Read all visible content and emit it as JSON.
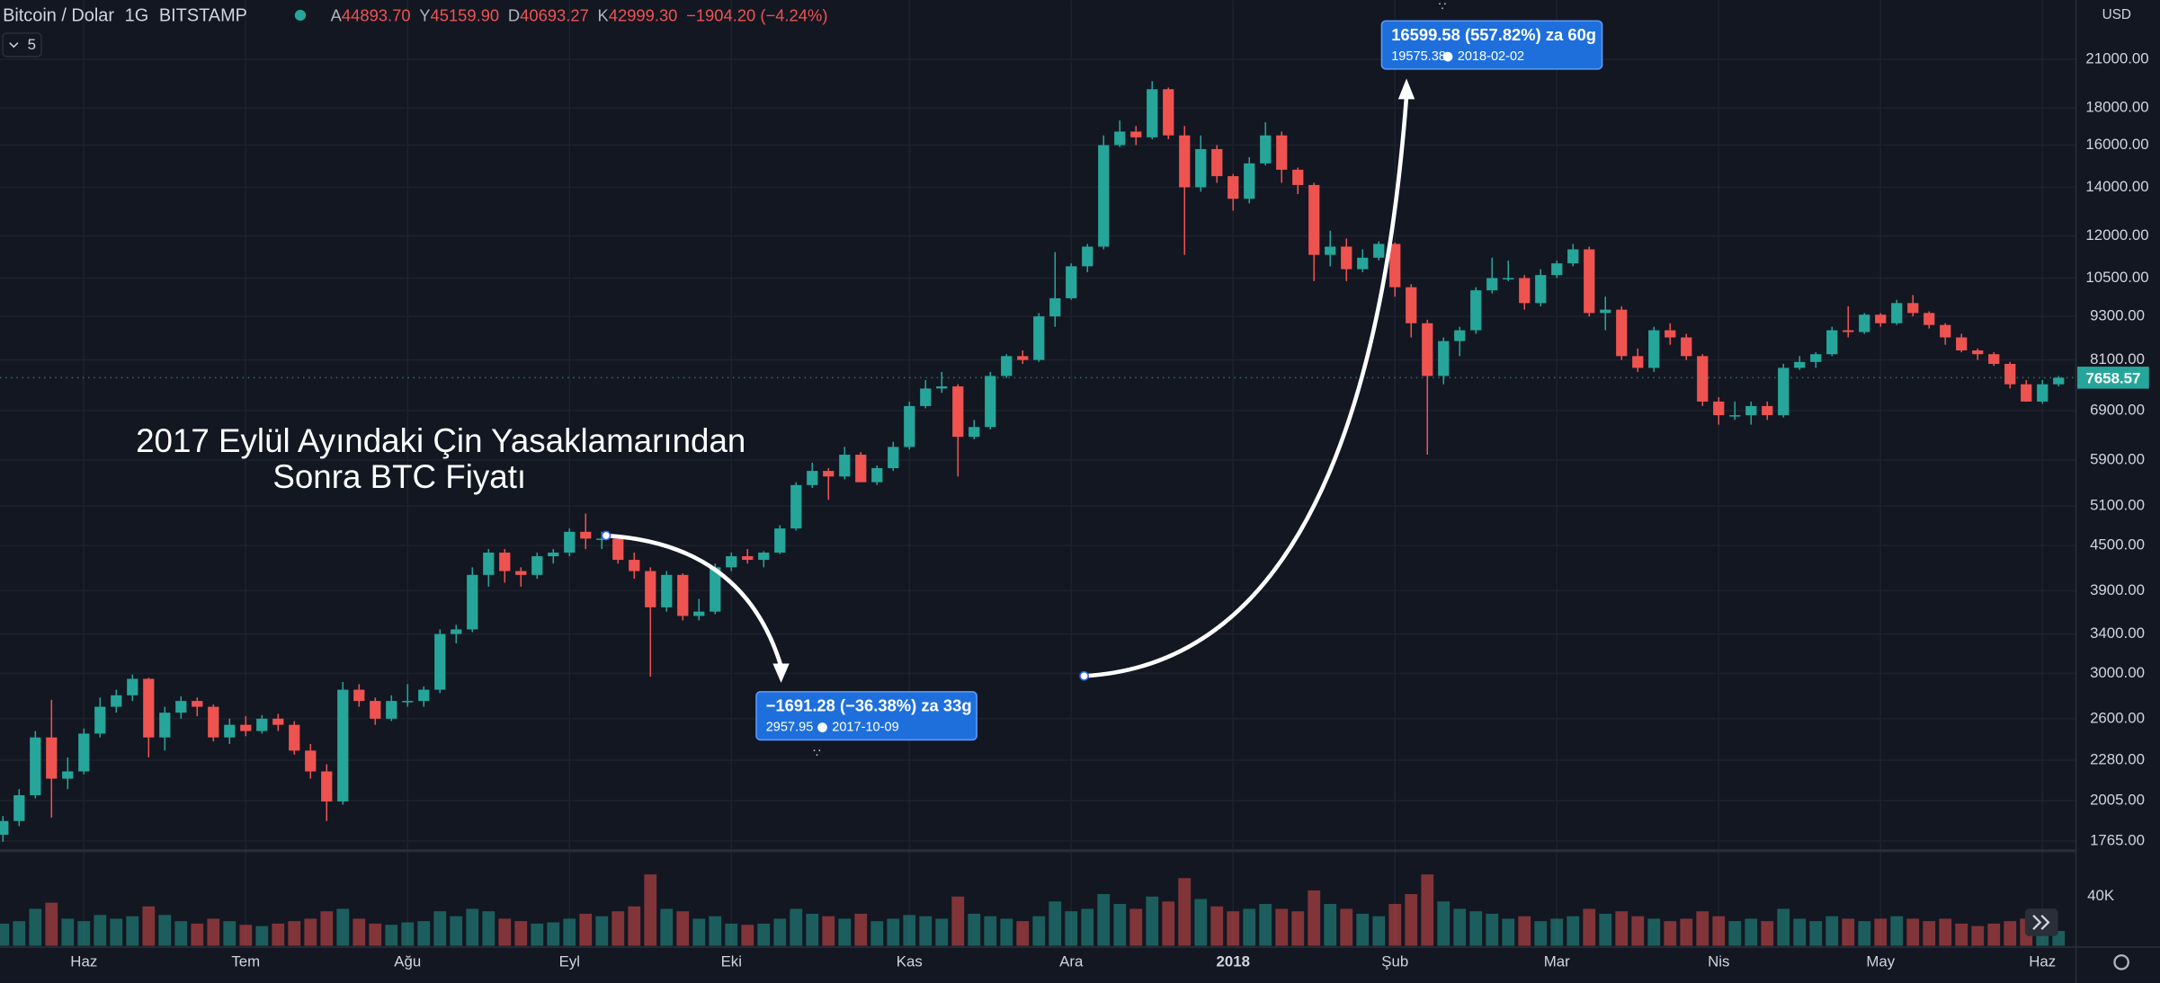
{
  "header": {
    "symbol": "Bitcoin / Dolar",
    "interval": "1G",
    "exchange": "BITSTAMP",
    "ohlc": [
      {
        "label": "A",
        "value": "44893.70"
      },
      {
        "label": "Y",
        "value": "45159.90"
      },
      {
        "label": "D",
        "value": "40693.27"
      },
      {
        "label": "K",
        "value": "42999.30"
      }
    ],
    "change": "−1904.20 (−4.24%)",
    "indicators": "5",
    "currency": "USD"
  },
  "chart_data": {
    "type": "candlestick",
    "log": true,
    "grid": true,
    "up_color": "#26a69a",
    "down_color": "#ef5350",
    "annotation": [
      "2017 Eylül Ayındaki Çin Yasaklamarından",
      "Sonra BTC Fiyatı"
    ],
    "measures": [
      {
        "text": "−1691.28 (−36.38%) za 33g",
        "price": 2957.95,
        "date": "2017-10-09"
      },
      {
        "text": "16599.58 (557.82%) za 60g",
        "price": 19575.38,
        "date": "2018-02-02"
      }
    ],
    "ylim": [
      1711,
      25330
    ],
    "yticks": [
      {
        "value": 1765,
        "label": "1765.00"
      },
      {
        "value": 2005,
        "label": "2005.00"
      },
      {
        "value": 2280,
        "label": "2280.00"
      },
      {
        "value": 2600,
        "label": "2600.00"
      },
      {
        "value": 3000,
        "label": "3000.00"
      },
      {
        "value": 3400,
        "label": "3400.00"
      },
      {
        "value": 3900,
        "label": "3900.00"
      },
      {
        "value": 4500,
        "label": "4500.00"
      },
      {
        "value": 5100,
        "label": "5100.00"
      },
      {
        "value": 5900,
        "label": "5900.00"
      },
      {
        "value": 6900,
        "label": "6900.00"
      },
      {
        "value": 8100,
        "label": "8100.00"
      },
      {
        "value": 9300,
        "label": "9300.00"
      },
      {
        "value": 10500,
        "label": "10500.00"
      },
      {
        "value": 12000,
        "label": "12000.00"
      },
      {
        "value": 14000,
        "label": "14000.00"
      },
      {
        "value": 16000,
        "label": "16000.00"
      },
      {
        "value": 18000,
        "label": "18000.00"
      },
      {
        "value": 21000,
        "label": "21000.00"
      }
    ],
    "vlim": [
      0,
      75000
    ],
    "vticks": [
      {
        "value": 40000,
        "label": "40K"
      }
    ],
    "categories": [
      null,
      null,
      null,
      null,
      null,
      "Haz",
      null,
      null,
      null,
      null,
      null,
      null,
      null,
      null,
      null,
      "Tem",
      null,
      null,
      null,
      null,
      null,
      null,
      null,
      null,
      null,
      "Ağu",
      null,
      null,
      null,
      null,
      null,
      null,
      null,
      null,
      null,
      "Eyl",
      null,
      null,
      null,
      null,
      null,
      null,
      null,
      null,
      null,
      "Eki",
      null,
      null,
      null,
      null,
      null,
      null,
      null,
      null,
      null,
      null,
      "Kas",
      null,
      null,
      null,
      null,
      null,
      null,
      null,
      null,
      null,
      "Ara",
      null,
      null,
      null,
      null,
      null,
      null,
      null,
      null,
      null,
      "2018",
      null,
      null,
      null,
      null,
      null,
      null,
      null,
      null,
      null,
      "Şub",
      null,
      null,
      null,
      null,
      null,
      null,
      null,
      null,
      null,
      "Mar",
      null,
      null,
      null,
      null,
      null,
      null,
      null,
      null,
      null,
      "Nis",
      null,
      null,
      null,
      null,
      null,
      null,
      null,
      null,
      null,
      "May",
      null,
      null,
      null,
      null,
      null,
      null,
      null,
      null,
      null,
      "Haz",
      null
    ],
    "candles": [
      [
        1800,
        1910,
        1760,
        1880
      ],
      [
        1880,
        2080,
        1850,
        2040
      ],
      [
        2040,
        2500,
        2020,
        2450
      ],
      [
        2450,
        2760,
        1900,
        2150
      ],
      [
        2150,
        2300,
        2080,
        2200
      ],
      [
        2200,
        2520,
        2180,
        2480
      ],
      [
        2480,
        2780,
        2450,
        2700
      ],
      [
        2700,
        2850,
        2650,
        2800
      ],
      [
        2800,
        2990,
        2750,
        2950
      ],
      [
        2950,
        2960,
        2300,
        2450
      ],
      [
        2450,
        2700,
        2350,
        2650
      ],
      [
        2650,
        2790,
        2600,
        2750
      ],
      [
        2750,
        2780,
        2620,
        2700
      ],
      [
        2700,
        2720,
        2420,
        2450
      ],
      [
        2450,
        2600,
        2400,
        2550
      ],
      [
        2550,
        2620,
        2460,
        2500
      ],
      [
        2500,
        2630,
        2480,
        2600
      ],
      [
        2600,
        2640,
        2500,
        2550
      ],
      [
        2550,
        2580,
        2320,
        2350
      ],
      [
        2350,
        2400,
        2150,
        2200
      ],
      [
        2200,
        2250,
        1880,
        2000
      ],
      [
        2000,
        2920,
        1980,
        2850
      ],
      [
        2850,
        2900,
        2700,
        2750
      ],
      [
        2750,
        2780,
        2550,
        2600
      ],
      [
        2600,
        2800,
        2580,
        2750
      ],
      [
        2750,
        2900,
        2700,
        2750
      ],
      [
        2750,
        2880,
        2700,
        2850
      ],
      [
        2850,
        3450,
        2820,
        3400
      ],
      [
        3400,
        3500,
        3300,
        3450
      ],
      [
        3450,
        4200,
        3420,
        4100
      ],
      [
        4100,
        4450,
        3950,
        4400
      ],
      [
        4400,
        4450,
        4000,
        4150
      ],
      [
        4150,
        4200,
        3950,
        4100
      ],
      [
        4100,
        4400,
        4050,
        4350
      ],
      [
        4350,
        4450,
        4250,
        4400
      ],
      [
        4400,
        4750,
        4350,
        4700
      ],
      [
        4700,
        4980,
        4450,
        4600
      ],
      [
        4600,
        4700,
        4450,
        4600
      ],
      [
        4600,
        4650,
        4250,
        4300
      ],
      [
        4300,
        4400,
        4050,
        4150
      ],
      [
        4150,
        4200,
        2970,
        3700
      ],
      [
        3700,
        4150,
        3650,
        4100
      ],
      [
        4100,
        4120,
        3550,
        3600
      ],
      [
        3600,
        3800,
        3550,
        3650
      ],
      [
        3650,
        4250,
        3620,
        4200
      ],
      [
        4200,
        4400,
        4150,
        4350
      ],
      [
        4350,
        4450,
        4250,
        4300
      ],
      [
        4300,
        4420,
        4200,
        4400
      ],
      [
        4400,
        4800,
        4380,
        4750
      ],
      [
        4750,
        5500,
        4720,
        5450
      ],
      [
        5450,
        5850,
        5400,
        5700
      ],
      [
        5700,
        5750,
        5200,
        5600
      ],
      [
        5600,
        6150,
        5550,
        6000
      ],
      [
        6000,
        6050,
        5500,
        5500
      ],
      [
        5500,
        5800,
        5450,
        5750
      ],
      [
        5750,
        6250,
        5700,
        6150
      ],
      [
        6150,
        7100,
        6100,
        7000
      ],
      [
        7000,
        7600,
        6950,
        7400
      ],
      [
        7400,
        7800,
        7300,
        7450
      ],
      [
        7450,
        7500,
        5600,
        6350
      ],
      [
        6350,
        6700,
        6300,
        6550
      ],
      [
        6550,
        7800,
        6500,
        7700
      ],
      [
        7700,
        8250,
        7650,
        8200
      ],
      [
        8200,
        8350,
        8000,
        8100
      ],
      [
        8100,
        9400,
        8050,
        9300
      ],
      [
        9300,
        11400,
        9000,
        9850
      ],
      [
        9850,
        11000,
        9800,
        10900
      ],
      [
        10900,
        11700,
        10700,
        11600
      ],
      [
        11600,
        16500,
        11500,
        16000
      ],
      [
        16000,
        17300,
        15900,
        16700
      ],
      [
        16700,
        17000,
        16000,
        16400
      ],
      [
        16400,
        19600,
        16300,
        19100
      ],
      [
        19100,
        19200,
        16300,
        16500
      ],
      [
        16500,
        17000,
        11300,
        14000
      ],
      [
        14000,
        16500,
        13800,
        15800
      ],
      [
        15800,
        16000,
        14200,
        14500
      ],
      [
        14500,
        14600,
        13000,
        13500
      ],
      [
        13500,
        15400,
        13300,
        15100
      ],
      [
        15100,
        17200,
        15000,
        16500
      ],
      [
        16500,
        16700,
        14200,
        14800
      ],
      [
        14800,
        14900,
        13700,
        14100
      ],
      [
        14100,
        14200,
        10400,
        11300
      ],
      [
        11300,
        12200,
        10900,
        11600
      ],
      [
        11600,
        11900,
        10400,
        10800
      ],
      [
        10800,
        11500,
        10700,
        11200
      ],
      [
        11200,
        11800,
        11100,
        11700
      ],
      [
        11700,
        11750,
        9900,
        10200
      ],
      [
        10200,
        10300,
        8700,
        9100
      ],
      [
        9100,
        9200,
        6000,
        7700
      ],
      [
        7700,
        8700,
        7500,
        8600
      ],
      [
        8600,
        9000,
        8200,
        8900
      ],
      [
        8900,
        10200,
        8800,
        10100
      ],
      [
        10100,
        11200,
        10000,
        10500
      ],
      [
        10500,
        11100,
        10400,
        10500
      ],
      [
        10500,
        10600,
        9500,
        9700
      ],
      [
        9700,
        10800,
        9600,
        10600
      ],
      [
        10600,
        11100,
        10500,
        11000
      ],
      [
        11000,
        11700,
        10900,
        11500
      ],
      [
        11500,
        11600,
        9300,
        9400
      ],
      [
        9400,
        9900,
        8900,
        9500
      ],
      [
        9500,
        9600,
        8100,
        8200
      ],
      [
        8200,
        8400,
        7800,
        7900
      ],
      [
        7900,
        9000,
        7800,
        8900
      ],
      [
        8900,
        9100,
        8500,
        8700
      ],
      [
        8700,
        8800,
        8100,
        8200
      ],
      [
        8200,
        8250,
        7000,
        7100
      ],
      [
        7100,
        7200,
        6600,
        6800
      ],
      [
        6800,
        7100,
        6700,
        6800
      ],
      [
        6800,
        7100,
        6600,
        7000
      ],
      [
        7000,
        7100,
        6700,
        6800
      ],
      [
        6800,
        8000,
        6750,
        7900
      ],
      [
        7900,
        8200,
        7850,
        8050
      ],
      [
        8050,
        8300,
        7900,
        8250
      ],
      [
        8250,
        9000,
        8200,
        8900
      ],
      [
        8900,
        9600,
        8700,
        8850
      ],
      [
        8850,
        9400,
        8800,
        9350
      ],
      [
        9350,
        9400,
        9000,
        9100
      ],
      [
        9100,
        9800,
        9050,
        9700
      ],
      [
        9700,
        9950,
        9300,
        9400
      ],
      [
        9400,
        9450,
        8950,
        9050
      ],
      [
        9050,
        9100,
        8500,
        8700
      ],
      [
        8700,
        8800,
        8300,
        8350
      ],
      [
        8350,
        8400,
        8100,
        8250
      ],
      [
        8250,
        8300,
        7950,
        8000
      ],
      [
        8000,
        8050,
        7400,
        7500
      ],
      [
        7500,
        7600,
        7100,
        7100
      ],
      [
        7100,
        7600,
        7050,
        7500
      ],
      [
        7500,
        7700,
        7450,
        7658.57
      ]
    ],
    "volume": [
      18000,
      20000,
      30000,
      35000,
      22000,
      20000,
      25000,
      22000,
      24000,
      32000,
      25000,
      20000,
      18000,
      22000,
      20000,
      17000,
      16000,
      18000,
      20000,
      22000,
      28000,
      30000,
      22000,
      18000,
      17000,
      19000,
      20000,
      28000,
      24000,
      30000,
      28000,
      22000,
      20000,
      18000,
      19000,
      22000,
      26000,
      24000,
      28000,
      32000,
      58000,
      30000,
      28000,
      22000,
      24000,
      18000,
      17000,
      18000,
      22000,
      30000,
      26000,
      24000,
      22000,
      26000,
      20000,
      22000,
      25000,
      24000,
      22000,
      40000,
      26000,
      24000,
      22000,
      20000,
      24000,
      36000,
      28000,
      30000,
      42000,
      34000,
      30000,
      40000,
      36000,
      55000,
      38000,
      32000,
      28000,
      30000,
      34000,
      30000,
      28000,
      45000,
      34000,
      30000,
      26000,
      24000,
      34000,
      42000,
      58000,
      36000,
      30000,
      28000,
      26000,
      22000,
      24000,
      20000,
      22000,
      24000,
      30000,
      26000,
      28000,
      24000,
      22000,
      20000,
      22000,
      28000,
      24000,
      20000,
      22000,
      20000,
      30000,
      22000,
      20000,
      24000,
      22000,
      20000,
      22000,
      24000,
      22000,
      20000,
      22000,
      18000,
      16000,
      18000,
      20000,
      22000,
      16000,
      12000
    ]
  }
}
